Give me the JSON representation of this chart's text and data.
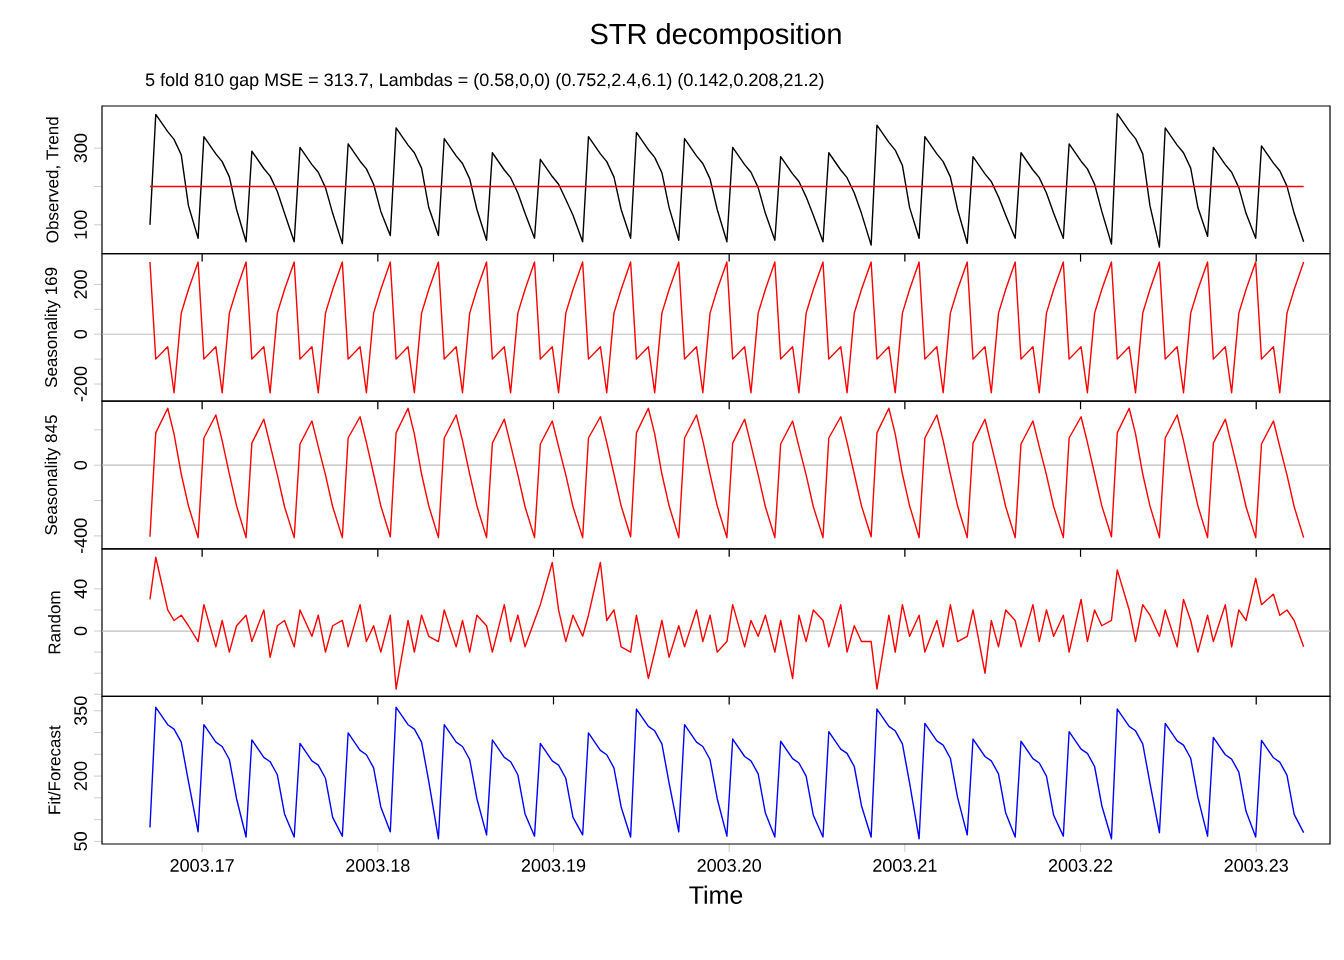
{
  "chart_data": [
    {
      "type": "line",
      "title": "STR decomposition",
      "subtitle": "5 fold 810 gap MSE = 313.7, Lambdas = (0.58,0,0) (0.752,2.4,6.1) (0.142,0.208,21.2)",
      "ylabel": "Observed, Trend",
      "tick_labels": "y",
      "xlim": [
        2003.1643,
        2003.2342
      ],
      "xticks": [
        2003.17,
        2003.18,
        2003.19,
        2003.2,
        2003.21,
        2003.22,
        2003.23
      ],
      "ylim": [
        25,
        410
      ],
      "yticks": [
        100,
        {
          "value": 200,
          "label": null
        },
        300
      ],
      "x": [
        2003.16703,
        2003.16736,
        2003.16804,
        2003.1684,
        2003.16881,
        2003.16922,
        2003.16977,
        2003.1701,
        2003.17078,
        2003.17114,
        2003.17155,
        2003.17196,
        2003.1725,
        2003.17283,
        2003.17351,
        2003.17387,
        2003.17428,
        2003.17469,
        2003.17524,
        2003.17557,
        2003.17625,
        2003.17661,
        2003.17702,
        2003.17743,
        2003.17798,
        2003.17831,
        2003.17899,
        2003.17935,
        2003.17976,
        2003.18017,
        2003.18071,
        2003.18104,
        2003.18172,
        2003.18208,
        2003.18249,
        2003.1829,
        2003.18345,
        2003.18378,
        2003.18446,
        2003.18482,
        2003.18523,
        2003.18564,
        2003.18619,
        2003.18652,
        2003.1872,
        2003.18756,
        2003.18797,
        2003.18838,
        2003.18892,
        2003.18925,
        2003.18993,
        2003.19029,
        2003.1907,
        2003.19111,
        2003.19166,
        2003.19199,
        2003.19267,
        2003.19303,
        2003.19344,
        2003.19385,
        2003.19439,
        2003.19472,
        2003.1954,
        2003.19576,
        2003.19617,
        2003.19658,
        2003.19713,
        2003.19746,
        2003.19814,
        2003.1985,
        2003.19891,
        2003.19932,
        2003.19987,
        2003.2002,
        2003.20088,
        2003.20124,
        2003.20165,
        2003.20206,
        2003.2026,
        2003.20293,
        2003.20361,
        2003.20397,
        2003.20438,
        2003.20479,
        2003.20534,
        2003.20567,
        2003.20635,
        2003.20671,
        2003.20712,
        2003.20753,
        2003.20808,
        2003.20841,
        2003.20909,
        2003.20945,
        2003.20986,
        2003.21027,
        2003.21081,
        2003.21114,
        2003.21182,
        2003.21218,
        2003.21259,
        2003.213,
        2003.21355,
        2003.21388,
        2003.21456,
        2003.21492,
        2003.21533,
        2003.21574,
        2003.21628,
        2003.21661,
        2003.21729,
        2003.21765,
        2003.21806,
        2003.21847,
        2003.21902,
        2003.21935,
        2003.22003,
        2003.22039,
        2003.2208,
        2003.22121,
        2003.22176,
        2003.22209,
        2003.22277,
        2003.22313,
        2003.22354,
        2003.22395,
        2003.22449,
        2003.22482,
        2003.2255,
        2003.22586,
        2003.22627,
        2003.22668,
        2003.22723,
        2003.22756,
        2003.22824,
        2003.2286,
        2003.22901,
        2003.22942,
        2003.22997,
        2003.2303,
        2003.23098,
        2003.23134,
        2003.23175,
        2003.23216,
        2003.2327
      ],
      "series": [
        {
          "color": "#000000",
          "values": [
            100,
            388,
            343,
            323,
            283,
            150,
            65,
            330,
            285,
            265,
            225,
            140,
            56,
            292,
            247,
            227,
            187,
            130,
            56,
            302,
            257,
            237,
            197,
            130,
            51,
            311,
            266,
            246,
            206,
            135,
            72,
            353,
            308,
            288,
            248,
            145,
            72,
            325,
            280,
            260,
            220,
            140,
            60,
            288,
            243,
            223,
            183,
            130,
            65,
            271,
            226,
            206,
            166,
            125,
            56,
            330,
            285,
            265,
            225,
            140,
            65,
            341,
            296,
            276,
            236,
            145,
            60,
            325,
            280,
            260,
            220,
            140,
            56,
            302,
            257,
            237,
            197,
            130,
            60,
            278,
            233,
            213,
            173,
            125,
            56,
            288,
            243,
            223,
            183,
            130,
            47,
            360,
            315,
            295,
            255,
            145,
            65,
            330,
            285,
            265,
            225,
            140,
            52,
            278,
            233,
            213,
            173,
            125,
            65,
            288,
            243,
            223,
            183,
            130,
            65,
            311,
            266,
            246,
            206,
            135,
            50,
            390,
            345,
            325,
            285,
            150,
            42,
            353,
            308,
            288,
            248,
            145,
            70,
            302,
            257,
            237,
            197,
            130,
            65,
            306,
            261,
            241,
            201,
            130,
            56
          ]
        },
        {
          "color": "#ff0000",
          "x": [
            2003.16703,
            2003.2327
          ],
          "values": [
            200,
            200
          ]
        }
      ]
    },
    {
      "type": "line",
      "ylabel": "Seasonality 169",
      "tick_labels": "y",
      "xlim": [
        2003.1643,
        2003.2342
      ],
      "xticks": [
        2003.17,
        2003.18,
        2003.19,
        2003.2,
        2003.21,
        2003.22,
        2003.23
      ],
      "ylim": [
        -269,
        324
      ],
      "yticks": [
        -200,
        {
          "value": -100,
          "label": null
        },
        0,
        {
          "value": 100,
          "label": null
        },
        200
      ],
      "ref_lines": [
        {
          "axis": "y",
          "value": 0,
          "color": "#bebebe"
        }
      ],
      "x": [
        2003.16703,
        2003.16736,
        2003.16804,
        2003.1684,
        2003.16881,
        2003.16922,
        2003.16977,
        2003.1701,
        2003.17078,
        2003.17114,
        2003.17155,
        2003.17196,
        2003.1725,
        2003.17283,
        2003.17351,
        2003.17387,
        2003.17428,
        2003.17469,
        2003.17524,
        2003.17557,
        2003.17625,
        2003.17661,
        2003.17702,
        2003.17743,
        2003.17798,
        2003.17831,
        2003.17899,
        2003.17935,
        2003.17976,
        2003.18017,
        2003.18071,
        2003.18104,
        2003.18172,
        2003.18208,
        2003.18249,
        2003.1829,
        2003.18345,
        2003.18378,
        2003.18446,
        2003.18482,
        2003.18523,
        2003.18564,
        2003.18619,
        2003.18652,
        2003.1872,
        2003.18756,
        2003.18797,
        2003.18838,
        2003.18892,
        2003.18925,
        2003.18993,
        2003.19029,
        2003.1907,
        2003.19111,
        2003.19166,
        2003.19199,
        2003.19267,
        2003.19303,
        2003.19344,
        2003.19385,
        2003.19439,
        2003.19472,
        2003.1954,
        2003.19576,
        2003.19617,
        2003.19658,
        2003.19713,
        2003.19746,
        2003.19814,
        2003.1985,
        2003.19891,
        2003.19932,
        2003.19987,
        2003.2002,
        2003.20088,
        2003.20124,
        2003.20165,
        2003.20206,
        2003.2026,
        2003.20293,
        2003.20361,
        2003.20397,
        2003.20438,
        2003.20479,
        2003.20534,
        2003.20567,
        2003.20635,
        2003.20671,
        2003.20712,
        2003.20753,
        2003.20808,
        2003.20841,
        2003.20909,
        2003.20945,
        2003.20986,
        2003.21027,
        2003.21081,
        2003.21114,
        2003.21182,
        2003.21218,
        2003.21259,
        2003.213,
        2003.21355,
        2003.21388,
        2003.21456,
        2003.21492,
        2003.21533,
        2003.21574,
        2003.21628,
        2003.21661,
        2003.21729,
        2003.21765,
        2003.21806,
        2003.21847,
        2003.21902,
        2003.21935,
        2003.22003,
        2003.22039,
        2003.2208,
        2003.22121,
        2003.22176,
        2003.22209,
        2003.22277,
        2003.22313,
        2003.22354,
        2003.22395,
        2003.22449,
        2003.22482,
        2003.2255,
        2003.22586,
        2003.22627,
        2003.22668,
        2003.22723,
        2003.22756,
        2003.22824,
        2003.2286,
        2003.22901,
        2003.22942,
        2003.22997,
        2003.2303,
        2003.23098,
        2003.23134,
        2003.23175,
        2003.23216,
        2003.2327
      ],
      "series": [
        {
          "color": "#ff0000",
          "values": [
            290,
            -100,
            -50,
            -235,
            85,
            180,
            290,
            -100,
            -50,
            -235,
            85,
            180,
            290,
            -100,
            -50,
            -235,
            85,
            180,
            290,
            -100,
            -50,
            -235,
            85,
            180,
            290,
            -100,
            -50,
            -235,
            85,
            180,
            290,
            -100,
            -50,
            -235,
            85,
            180,
            290,
            -100,
            -50,
            -235,
            85,
            180,
            290,
            -100,
            -50,
            -235,
            85,
            180,
            290,
            -100,
            -50,
            -235,
            85,
            180,
            290,
            -100,
            -50,
            -235,
            85,
            180,
            290,
            -100,
            -50,
            -235,
            85,
            180,
            290,
            -100,
            -50,
            -235,
            85,
            180,
            290,
            -100,
            -50,
            -235,
            85,
            180,
            290,
            -100,
            -50,
            -235,
            85,
            180,
            290,
            -100,
            -50,
            -235,
            85,
            180,
            290,
            -100,
            -50,
            -235,
            85,
            180,
            290,
            -100,
            -50,
            -235,
            85,
            180,
            290,
            -100,
            -50,
            -235,
            85,
            180,
            290,
            -100,
            -50,
            -235,
            85,
            180,
            290,
            -100,
            -50,
            -235,
            85,
            180,
            290,
            -100,
            -50,
            -235,
            85,
            180,
            290,
            -100,
            -50,
            -235,
            85,
            180,
            290,
            -100,
            -50,
            -235,
            85,
            180,
            290,
            -100,
            -50,
            -235,
            85,
            180,
            290
          ]
        }
      ]
    },
    {
      "type": "line",
      "ylabel": "Seasonality 845",
      "tick_labels": "y",
      "xlim": [
        2003.1643,
        2003.2342
      ],
      "xticks": [
        2003.17,
        2003.18,
        2003.19,
        2003.2,
        2003.21,
        2003.22,
        2003.23
      ],
      "ylim": [
        -473,
        362
      ],
      "yticks": [
        -400,
        {
          "value": -200,
          "label": null
        },
        0,
        {
          "value": 200,
          "label": null
        }
      ],
      "ref_lines": [
        {
          "axis": "y",
          "value": 0,
          "color": "#bebebe"
        }
      ],
      "x": [
        2003.16703,
        2003.16736,
        2003.16804,
        2003.1684,
        2003.16881,
        2003.16922,
        2003.16977,
        2003.1701,
        2003.17078,
        2003.17114,
        2003.17155,
        2003.17196,
        2003.1725,
        2003.17283,
        2003.17351,
        2003.17387,
        2003.17428,
        2003.17469,
        2003.17524,
        2003.17557,
        2003.17625,
        2003.17661,
        2003.17702,
        2003.17743,
        2003.17798,
        2003.17831,
        2003.17899,
        2003.17935,
        2003.17976,
        2003.18017,
        2003.18071,
        2003.18104,
        2003.18172,
        2003.18208,
        2003.18249,
        2003.1829,
        2003.18345,
        2003.18378,
        2003.18446,
        2003.18482,
        2003.18523,
        2003.18564,
        2003.18619,
        2003.18652,
        2003.1872,
        2003.18756,
        2003.18797,
        2003.18838,
        2003.18892,
        2003.18925,
        2003.18993,
        2003.19029,
        2003.1907,
        2003.19111,
        2003.19166,
        2003.19199,
        2003.19267,
        2003.19303,
        2003.19344,
        2003.19385,
        2003.19439,
        2003.19472,
        2003.1954,
        2003.19576,
        2003.19617,
        2003.19658,
        2003.19713,
        2003.19746,
        2003.19814,
        2003.1985,
        2003.19891,
        2003.19932,
        2003.19987,
        2003.2002,
        2003.20088,
        2003.20124,
        2003.20165,
        2003.20206,
        2003.2026,
        2003.20293,
        2003.20361,
        2003.20397,
        2003.20438,
        2003.20479,
        2003.20534,
        2003.20567,
        2003.20635,
        2003.20671,
        2003.20712,
        2003.20753,
        2003.20808,
        2003.20841,
        2003.20909,
        2003.20945,
        2003.20986,
        2003.21027,
        2003.21081,
        2003.21114,
        2003.21182,
        2003.21218,
        2003.21259,
        2003.213,
        2003.21355,
        2003.21388,
        2003.21456,
        2003.21492,
        2003.21533,
        2003.21574,
        2003.21628,
        2003.21661,
        2003.21729,
        2003.21765,
        2003.21806,
        2003.21847,
        2003.21902,
        2003.21935,
        2003.22003,
        2003.22039,
        2003.2208,
        2003.22121,
        2003.22176,
        2003.22209,
        2003.22277,
        2003.22313,
        2003.22354,
        2003.22395,
        2003.22449,
        2003.22482,
        2003.2255,
        2003.22586,
        2003.22627,
        2003.22668,
        2003.22723,
        2003.22756,
        2003.22824,
        2003.2286,
        2003.22901,
        2003.22942,
        2003.22997,
        2003.2303,
        2003.23098,
        2003.23134,
        2003.23175,
        2003.23216,
        2003.2327
      ],
      "series": [
        {
          "color": "#ff0000",
          "values": [
            -405,
            183,
            322,
            177,
            -50,
            -230,
            -410,
            154,
            284,
            139,
            -50,
            -230,
            -410,
            125,
            260,
            115,
            -55,
            -235,
            -410,
            120,
            250,
            105,
            -55,
            -235,
            -410,
            154,
            274,
            129,
            -50,
            -230,
            -405,
            183,
            322,
            177,
            -50,
            -230,
            -410,
            154,
            284,
            139,
            -50,
            -230,
            -410,
            125,
            260,
            115,
            -55,
            -235,
            -410,
            120,
            250,
            105,
            -55,
            -235,
            -410,
            154,
            274,
            129,
            -50,
            -230,
            -405,
            183,
            322,
            177,
            -50,
            -230,
            -410,
            154,
            284,
            139,
            -50,
            -230,
            -410,
            125,
            260,
            115,
            -55,
            -235,
            -410,
            120,
            250,
            105,
            -55,
            -235,
            -410,
            154,
            274,
            129,
            -50,
            -230,
            -405,
            183,
            322,
            177,
            -50,
            -230,
            -410,
            154,
            284,
            139,
            -50,
            -230,
            -410,
            125,
            260,
            115,
            -55,
            -235,
            -410,
            120,
            250,
            105,
            -55,
            -235,
            -410,
            154,
            274,
            129,
            -50,
            -230,
            -405,
            183,
            322,
            177,
            -50,
            -230,
            -410,
            154,
            284,
            139,
            -50,
            -230,
            -410,
            125,
            260,
            115,
            -55,
            -235,
            -410,
            120,
            250,
            105,
            -55,
            -235,
            -410
          ]
        }
      ]
    },
    {
      "type": "line",
      "ylabel": "Random",
      "tick_labels": "y",
      "xlim": [
        2003.1643,
        2003.2342
      ],
      "xticks": [
        2003.17,
        2003.18,
        2003.19,
        2003.2,
        2003.21,
        2003.22,
        2003.23
      ],
      "ylim": [
        -62,
        78
      ],
      "yticks": [
        {
          "value": -60,
          "label": null
        },
        {
          "value": -40,
          "label": null
        },
        {
          "value": -20,
          "label": null
        },
        0,
        {
          "value": 20,
          "label": null
        },
        40
      ],
      "ref_lines": [
        {
          "axis": "y",
          "value": 0,
          "color": "#bebebe"
        }
      ],
      "x": [
        2003.16703,
        2003.16736,
        2003.16804,
        2003.1684,
        2003.16881,
        2003.16922,
        2003.16977,
        2003.1701,
        2003.17078,
        2003.17114,
        2003.17155,
        2003.17196,
        2003.1725,
        2003.17283,
        2003.17351,
        2003.17387,
        2003.17428,
        2003.17469,
        2003.17524,
        2003.17557,
        2003.17625,
        2003.17661,
        2003.17702,
        2003.17743,
        2003.17798,
        2003.17831,
        2003.17899,
        2003.17935,
        2003.17976,
        2003.18017,
        2003.18071,
        2003.18104,
        2003.18172,
        2003.18208,
        2003.18249,
        2003.1829,
        2003.18345,
        2003.18378,
        2003.18446,
        2003.18482,
        2003.18523,
        2003.18564,
        2003.18619,
        2003.18652,
        2003.1872,
        2003.18756,
        2003.18797,
        2003.18838,
        2003.18892,
        2003.18925,
        2003.18993,
        2003.19029,
        2003.1907,
        2003.19111,
        2003.19166,
        2003.19199,
        2003.19267,
        2003.19303,
        2003.19344,
        2003.19385,
        2003.19439,
        2003.19472,
        2003.1954,
        2003.19576,
        2003.19617,
        2003.19658,
        2003.19713,
        2003.19746,
        2003.19814,
        2003.1985,
        2003.19891,
        2003.19932,
        2003.19987,
        2003.2002,
        2003.20088,
        2003.20124,
        2003.20165,
        2003.20206,
        2003.2026,
        2003.20293,
        2003.20361,
        2003.20397,
        2003.20438,
        2003.20479,
        2003.20534,
        2003.20567,
        2003.20635,
        2003.20671,
        2003.20712,
        2003.20753,
        2003.20808,
        2003.20841,
        2003.20909,
        2003.20945,
        2003.20986,
        2003.21027,
        2003.21081,
        2003.21114,
        2003.21182,
        2003.21218,
        2003.21259,
        2003.213,
        2003.21355,
        2003.21388,
        2003.21456,
        2003.21492,
        2003.21533,
        2003.21574,
        2003.21628,
        2003.21661,
        2003.21729,
        2003.21765,
        2003.21806,
        2003.21847,
        2003.21902,
        2003.21935,
        2003.22003,
        2003.22039,
        2003.2208,
        2003.22121,
        2003.22176,
        2003.22209,
        2003.22277,
        2003.22313,
        2003.22354,
        2003.22395,
        2003.22449,
        2003.22482,
        2003.2255,
        2003.22586,
        2003.22627,
        2003.22668,
        2003.22723,
        2003.22756,
        2003.22824,
        2003.2286,
        2003.22901,
        2003.22942,
        2003.22997,
        2003.2303,
        2003.23098,
        2003.23134,
        2003.23175,
        2003.23216,
        2003.2327
      ],
      "series": [
        {
          "color": "#ff0000",
          "values": [
            30,
            70,
            20,
            10,
            15,
            5,
            -10,
            25,
            -15,
            10,
            -20,
            5,
            15,
            -10,
            20,
            -25,
            5,
            10,
            -15,
            20,
            -5,
            15,
            -20,
            5,
            10,
            -15,
            25,
            -10,
            5,
            -20,
            15,
            -55,
            10,
            -20,
            15,
            -5,
            -10,
            20,
            -15,
            10,
            -20,
            15,
            5,
            -20,
            25,
            -10,
            15,
            -15,
            10,
            25,
            65,
            20,
            -10,
            15,
            -5,
            15,
            65,
            10,
            20,
            -15,
            -20,
            15,
            -45,
            -20,
            10,
            -25,
            5,
            -15,
            20,
            -10,
            15,
            -20,
            -10,
            25,
            -15,
            10,
            -5,
            15,
            -20,
            10,
            -45,
            15,
            -10,
            20,
            10,
            -15,
            25,
            -20,
            5,
            -10,
            -10,
            -55,
            15,
            -20,
            25,
            -5,
            15,
            -20,
            10,
            -15,
            25,
            -10,
            -5,
            20,
            -40,
            10,
            -15,
            20,
            10,
            -15,
            25,
            -10,
            20,
            -5,
            15,
            -20,
            30,
            -10,
            20,
            5,
            10,
            58,
            20,
            -10,
            25,
            15,
            -5,
            20,
            -15,
            30,
            10,
            -20,
            15,
            -10,
            25,
            -15,
            20,
            10,
            50,
            25,
            35,
            15,
            20,
            10,
            -15
          ]
        }
      ]
    },
    {
      "type": "line",
      "ylabel": "Fit/Forecast",
      "xlabel": "Time",
      "xlim": [
        2003.1643,
        2003.2342
      ],
      "xticks": [
        2003.17,
        2003.18,
        2003.19,
        {
          "value": 2003.2,
          "label": "2003.20"
        },
        2003.21,
        2003.22,
        2003.23
      ],
      "ylim": [
        44,
        383
      ],
      "yticks": [
        50,
        {
          "value": 100,
          "label": null
        },
        {
          "value": 150,
          "label": null
        },
        200,
        {
          "value": 250,
          "label": null
        },
        {
          "value": 300,
          "label": null
        },
        350
      ],
      "x": [
        2003.16703,
        2003.16736,
        2003.16804,
        2003.1684,
        2003.16881,
        2003.16922,
        2003.16977,
        2003.1701,
        2003.17078,
        2003.17114,
        2003.17155,
        2003.17196,
        2003.1725,
        2003.17283,
        2003.17351,
        2003.17387,
        2003.17428,
        2003.17469,
        2003.17524,
        2003.17557,
        2003.17625,
        2003.17661,
        2003.17702,
        2003.17743,
        2003.17798,
        2003.17831,
        2003.17899,
        2003.17935,
        2003.17976,
        2003.18017,
        2003.18071,
        2003.18104,
        2003.18172,
        2003.18208,
        2003.18249,
        2003.1829,
        2003.18345,
        2003.18378,
        2003.18446,
        2003.18482,
        2003.18523,
        2003.18564,
        2003.18619,
        2003.18652,
        2003.1872,
        2003.18756,
        2003.18797,
        2003.18838,
        2003.18892,
        2003.18925,
        2003.18993,
        2003.19029,
        2003.1907,
        2003.19111,
        2003.19166,
        2003.19199,
        2003.19267,
        2003.19303,
        2003.19344,
        2003.19385,
        2003.19439,
        2003.19472,
        2003.1954,
        2003.19576,
        2003.19617,
        2003.19658,
        2003.19713,
        2003.19746,
        2003.19814,
        2003.1985,
        2003.19891,
        2003.19932,
        2003.19987,
        2003.2002,
        2003.20088,
        2003.20124,
        2003.20165,
        2003.20206,
        2003.2026,
        2003.20293,
        2003.20361,
        2003.20397,
        2003.20438,
        2003.20479,
        2003.20534,
        2003.20567,
        2003.20635,
        2003.20671,
        2003.20712,
        2003.20753,
        2003.20808,
        2003.20841,
        2003.20909,
        2003.20945,
        2003.20986,
        2003.21027,
        2003.21081,
        2003.21114,
        2003.21182,
        2003.21218,
        2003.21259,
        2003.213,
        2003.21355,
        2003.21388,
        2003.21456,
        2003.21492,
        2003.21533,
        2003.21574,
        2003.21628,
        2003.21661,
        2003.21729,
        2003.21765,
        2003.21806,
        2003.21847,
        2003.21902,
        2003.21935,
        2003.22003,
        2003.22039,
        2003.2208,
        2003.22121,
        2003.22176,
        2003.22209,
        2003.22277,
        2003.22313,
        2003.22354,
        2003.22395,
        2003.22449,
        2003.22482,
        2003.2255,
        2003.22586,
        2003.22627,
        2003.22668,
        2003.22723,
        2003.22756,
        2003.22824,
        2003.2286,
        2003.22901,
        2003.22942,
        2003.22997,
        2003.2303,
        2003.23098,
        2003.23134,
        2003.23175,
        2003.23216,
        2003.2327
      ],
      "series": [
        {
          "color": "#0000ff",
          "values": [
            82,
            358,
            318,
            308,
            278,
            188,
            72,
            318,
            278,
            268,
            238,
            148,
            60,
            283,
            243,
            233,
            203,
            113,
            60,
            275,
            235,
            225,
            195,
            105,
            62,
            299,
            259,
            249,
            219,
            129,
            72,
            358,
            318,
            308,
            278,
            188,
            56,
            318,
            278,
            268,
            238,
            148,
            65,
            283,
            243,
            233,
            203,
            113,
            62,
            275,
            235,
            225,
            195,
            105,
            65,
            299,
            259,
            249,
            219,
            129,
            60,
            354,
            314,
            304,
            274,
            184,
            72,
            318,
            278,
            268,
            238,
            148,
            62,
            285,
            245,
            235,
            205,
            115,
            60,
            280,
            240,
            230,
            200,
            110,
            60,
            302,
            262,
            252,
            222,
            132,
            60,
            354,
            314,
            304,
            274,
            184,
            56,
            321,
            281,
            271,
            241,
            151,
            65,
            285,
            245,
            235,
            205,
            115,
            60,
            280,
            240,
            230,
            200,
            110,
            62,
            302,
            262,
            252,
            222,
            132,
            56,
            354,
            314,
            304,
            274,
            184,
            70,
            321,
            281,
            271,
            241,
            151,
            62,
            289,
            249,
            239,
            209,
            119,
            60,
            282,
            242,
            232,
            202,
            112,
            70
          ]
        }
      ]
    }
  ]
}
